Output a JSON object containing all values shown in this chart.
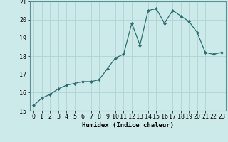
{
  "x": [
    0,
    1,
    2,
    3,
    4,
    5,
    6,
    7,
    8,
    9,
    10,
    11,
    12,
    13,
    14,
    15,
    16,
    17,
    18,
    19,
    20,
    21,
    22,
    23
  ],
  "y": [
    15.3,
    15.7,
    15.9,
    16.2,
    16.4,
    16.5,
    16.6,
    16.6,
    16.7,
    17.3,
    17.9,
    18.1,
    19.8,
    18.6,
    20.5,
    20.6,
    19.8,
    20.5,
    20.2,
    19.9,
    19.3,
    18.2,
    18.1,
    18.2
  ],
  "line_color": "#2d6e6e",
  "marker": "D",
  "marker_size": 2.0,
  "bg_color": "#cdeaea",
  "grid_color": "#aed4d4",
  "grid_color_major": "#c0d8d8",
  "xlabel": "Humidex (Indice chaleur)",
  "ylim": [
    15,
    21
  ],
  "xlim": [
    -0.5,
    23.5
  ],
  "yticks": [
    15,
    16,
    17,
    18,
    19,
    20,
    21
  ],
  "xticks": [
    0,
    1,
    2,
    3,
    4,
    5,
    6,
    7,
    8,
    9,
    10,
    11,
    12,
    13,
    14,
    15,
    16,
    17,
    18,
    19,
    20,
    21,
    22,
    23
  ],
  "label_fontsize": 6.5,
  "tick_fontsize": 6
}
